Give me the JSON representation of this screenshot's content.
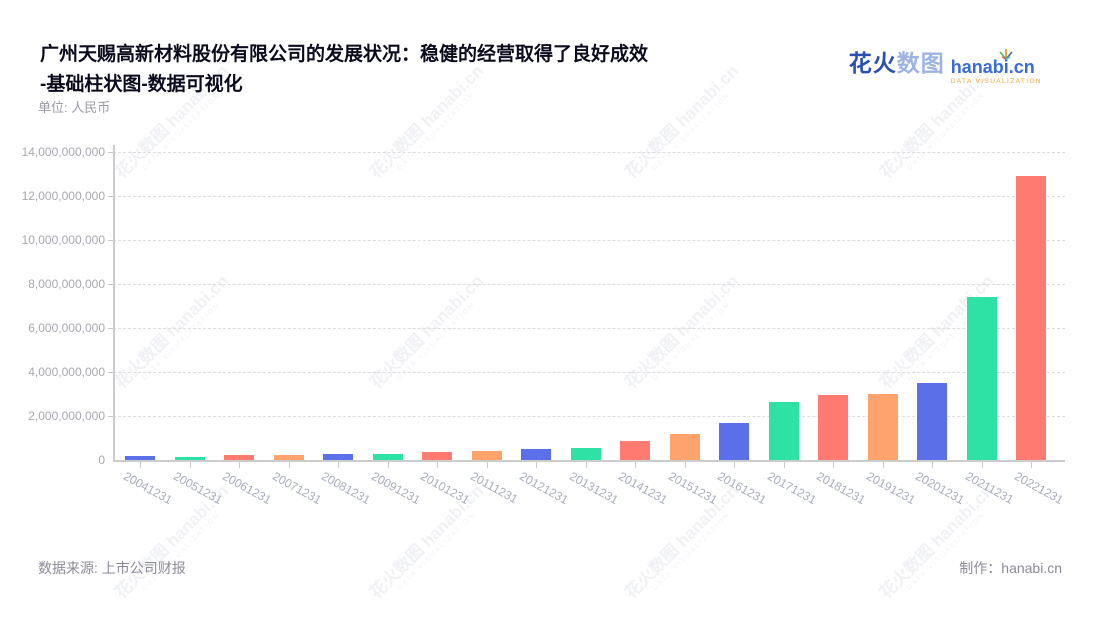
{
  "header": {
    "title_line1": "广州天赐高新材料股份有限公司的发展状况：稳健的经营取得了良好成效",
    "title_line2": "-基础柱状图-数据可视化",
    "unit_label": "单位: 人民币"
  },
  "logo": {
    "cn_bold": "花火",
    "cn_light": "数图",
    "domain": "hanabi.cn",
    "tagline": "DATA VISUALIZATION"
  },
  "watermark": {
    "text": "花火数图 hanabi.cn",
    "subtext": "DATA VISUALIZATION"
  },
  "footer": {
    "source": "数据来源: 上市公司财报",
    "maker": "制作：hanabi.cn"
  },
  "chart_data": {
    "type": "bar",
    "title": "广州天赐高新材料股份有限公司的发展状况：稳健的经营取得了良好成效-基础柱状图-数据可视化",
    "unit": "人民币",
    "categories": [
      "20041231",
      "20051231",
      "20061231",
      "20071231",
      "20081231",
      "20091231",
      "20101231",
      "20111231",
      "20121231",
      "20131231",
      "20141231",
      "20151231",
      "20161231",
      "20171231",
      "20181231",
      "20191231",
      "20201231",
      "20211231",
      "20221231"
    ],
    "values": [
      170000000,
      150000000,
      220000000,
      240000000,
      270000000,
      280000000,
      380000000,
      420000000,
      500000000,
      560000000,
      860000000,
      1200000000,
      1670000000,
      2650000000,
      2950000000,
      3000000000,
      3500000000,
      7400000000,
      12900000000
    ],
    "xlabel": "",
    "ylabel": "",
    "ylim": [
      0,
      14000000000
    ],
    "ytick_interval": 2000000000,
    "ytick_labels": [
      "0",
      "2,000,000,000",
      "4,000,000,000",
      "6,000,000,000",
      "8,000,000,000",
      "10,000,000,000",
      "12,000,000,000",
      "14,000,000,000"
    ],
    "grid": "horizontal-dashed",
    "legend": "none",
    "palette": [
      "#5b6fe8",
      "#2ee2a6",
      "#ff7b72",
      "#ffa36c"
    ],
    "bar_color_rule": "palette cycles blue, green, red, orange by year"
  }
}
